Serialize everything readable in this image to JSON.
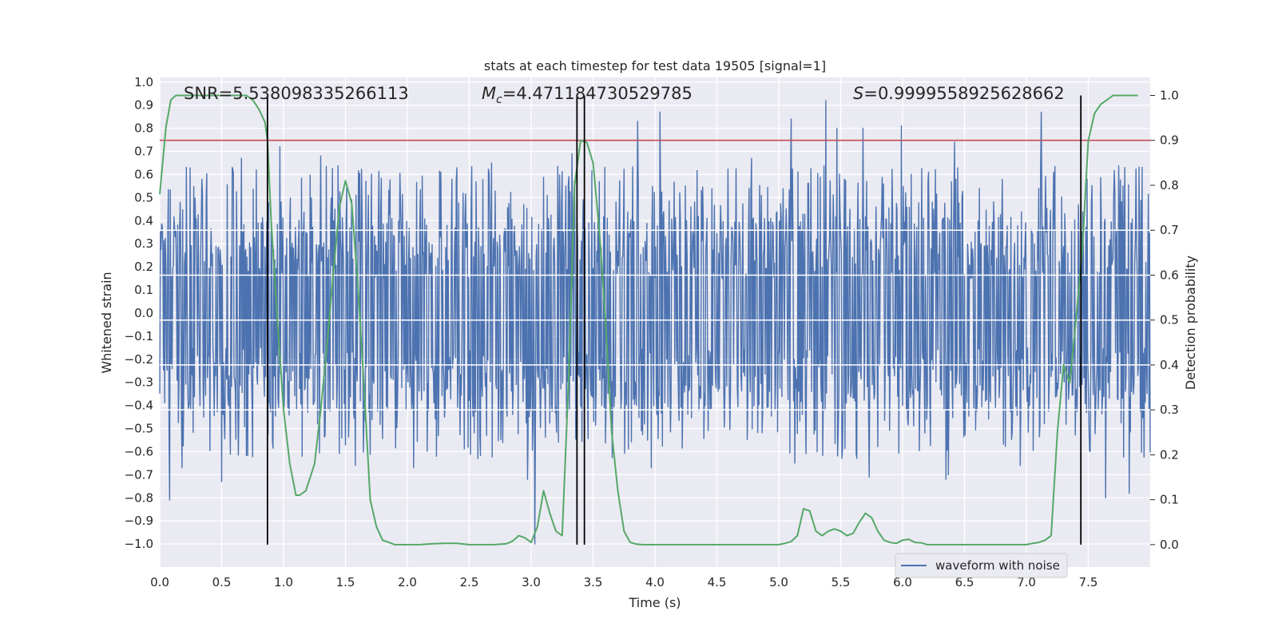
{
  "chart_data": {
    "type": "line",
    "title": "stats at each timestep for test data 19505 [signal=1]",
    "xlabel": "Time (s)",
    "ylabel_left": "Whitened strain",
    "ylabel_right": "Detection probability",
    "xlim": [
      0.0,
      8.0
    ],
    "ylim_left": [
      -1.1,
      1.02
    ],
    "ylim_right": [
      -0.05,
      1.04
    ],
    "x_ticks": [
      0.0,
      0.5,
      1.0,
      1.5,
      2.0,
      2.5,
      3.0,
      3.5,
      4.0,
      4.5,
      5.0,
      5.5,
      6.0,
      6.5,
      7.0,
      7.5
    ],
    "x_tick_labels": [
      "0.0",
      "0.5",
      "1.0",
      "1.5",
      "2.0",
      "2.5",
      "3.0",
      "3.5",
      "4.0",
      "4.5",
      "5.0",
      "5.5",
      "6.0",
      "6.5",
      "7.0",
      "7.5"
    ],
    "y_left_ticks": [
      1.0,
      0.9,
      0.8,
      0.7,
      0.6,
      0.5,
      0.4,
      0.3,
      0.2,
      0.1,
      0.0,
      -0.1,
      -0.2,
      -0.3,
      -0.4,
      -0.5,
      -0.6,
      -0.7,
      -0.8,
      -0.9,
      -1.0
    ],
    "y_left_tick_labels": [
      "1.0",
      "0.9",
      "0.8",
      "0.7",
      "0.6",
      "0.5",
      "0.4",
      "0.3",
      "0.2",
      "0.1",
      "0.0",
      "−0.1",
      "−0.2",
      "−0.3",
      "−0.4",
      "−0.5",
      "−0.6",
      "−0.7",
      "−0.8",
      "−0.9",
      "−1.0"
    ],
    "y_right_ticks": [
      1.0,
      0.9,
      0.8,
      0.7,
      0.6,
      0.5,
      0.4,
      0.3,
      0.2,
      0.1,
      0.0
    ],
    "y_right_tick_labels": [
      "1.0",
      "0.9",
      "0.8",
      "0.7",
      "0.6",
      "0.5",
      "0.4",
      "0.3",
      "0.2",
      "0.1",
      "0.0"
    ],
    "annotations": {
      "snr": "SNR=5.538098335266113",
      "mc_symbol": "M",
      "mc_sub": "c",
      "mc_value": "=4.471184730529785",
      "s_symbol": "S",
      "s_value": "=0.9999558925628662"
    },
    "legend": {
      "label": "waveform with noise",
      "location": "lower-right"
    },
    "threshold": {
      "value": 0.9,
      "axis": "right",
      "color": "#c44e52"
    },
    "vertical_lines": [
      0.87,
      3.37,
      3.43,
      7.44
    ],
    "waveform": {
      "name": "waveform with noise",
      "color": "#4c72b0",
      "duration_s": 8.0,
      "samples": 1600,
      "envelope_low": -0.43,
      "envelope_high": 0.42,
      "spikes": [
        {
          "t": 0.08,
          "v": -0.81
        },
        {
          "t": 0.18,
          "v": -0.67
        },
        {
          "t": 0.5,
          "v": -0.73
        },
        {
          "t": 0.66,
          "v": 0.67
        },
        {
          "t": 0.78,
          "v": 0.62
        },
        {
          "t": 0.97,
          "v": 0.72
        },
        {
          "t": 1.3,
          "v": 0.68
        },
        {
          "t": 1.58,
          "v": -0.66
        },
        {
          "t": 2.05,
          "v": -0.67
        },
        {
          "t": 2.57,
          "v": -0.63
        },
        {
          "t": 2.68,
          "v": 0.65
        },
        {
          "t": 2.97,
          "v": -0.72
        },
        {
          "t": 3.03,
          "v": -1.0
        },
        {
          "t": 3.33,
          "v": 0.69
        },
        {
          "t": 3.86,
          "v": 0.83
        },
        {
          "t": 3.97,
          "v": -0.67
        },
        {
          "t": 4.04,
          "v": 0.87
        },
        {
          "t": 4.78,
          "v": 0.67
        },
        {
          "t": 5.13,
          "v": -0.65
        },
        {
          "t": 5.38,
          "v": 0.92
        },
        {
          "t": 5.1,
          "v": 0.84
        },
        {
          "t": 5.47,
          "v": 0.8
        },
        {
          "t": 5.68,
          "v": 0.8
        },
        {
          "t": 5.73,
          "v": -0.71
        },
        {
          "t": 5.99,
          "v": 0.81
        },
        {
          "t": 6.35,
          "v": -0.72
        },
        {
          "t": 6.42,
          "v": 0.74
        },
        {
          "t": 6.95,
          "v": -0.66
        },
        {
          "t": 7.12,
          "v": 0.87
        },
        {
          "t": 7.64,
          "v": -0.8
        },
        {
          "t": 7.83,
          "v": -0.78
        },
        {
          "t": 1.15,
          "v": -0.62
        },
        {
          "t": 6.37,
          "v": -0.7
        }
      ]
    },
    "series": [
      {
        "name": "detection probability",
        "axis": "right",
        "color": "#55a868",
        "x": [
          0.0,
          0.05,
          0.09,
          0.13,
          0.2,
          0.3,
          0.4,
          0.5,
          0.6,
          0.7,
          0.75,
          0.8,
          0.85,
          0.87,
          0.9,
          0.95,
          1.0,
          1.05,
          1.1,
          1.13,
          1.18,
          1.25,
          1.3,
          1.35,
          1.4,
          1.45,
          1.5,
          1.55,
          1.6,
          1.65,
          1.7,
          1.75,
          1.8,
          1.85,
          1.9,
          2.0,
          2.1,
          2.2,
          2.3,
          2.4,
          2.5,
          2.6,
          2.7,
          2.8,
          2.85,
          2.9,
          2.95,
          3.0,
          3.05,
          3.1,
          3.15,
          3.2,
          3.25,
          3.3,
          3.35,
          3.4,
          3.45,
          3.5,
          3.55,
          3.6,
          3.65,
          3.7,
          3.75,
          3.8,
          3.85,
          3.9,
          4.0,
          4.1,
          4.2,
          4.3,
          4.4,
          4.5,
          4.6,
          4.7,
          4.8,
          4.9,
          5.0,
          5.05,
          5.1,
          5.15,
          5.2,
          5.25,
          5.3,
          5.35,
          5.4,
          5.45,
          5.5,
          5.55,
          5.6,
          5.65,
          5.7,
          5.75,
          5.8,
          5.85,
          5.9,
          5.95,
          6.0,
          6.05,
          6.1,
          6.15,
          6.2,
          6.25,
          6.3,
          6.4,
          6.5,
          6.6,
          6.7,
          6.8,
          6.9,
          7.0,
          7.05,
          7.1,
          7.15,
          7.2,
          7.25,
          7.3,
          7.35,
          7.4,
          7.45,
          7.5,
          7.55,
          7.6,
          7.65,
          7.7,
          7.8,
          7.9
        ],
        "y": [
          0.78,
          0.93,
          0.99,
          1.0,
          1.0,
          1.0,
          1.0,
          1.0,
          1.0,
          1.0,
          0.99,
          0.97,
          0.94,
          0.9,
          0.72,
          0.5,
          0.3,
          0.18,
          0.11,
          0.11,
          0.12,
          0.18,
          0.3,
          0.44,
          0.6,
          0.75,
          0.81,
          0.76,
          0.58,
          0.35,
          0.1,
          0.04,
          0.01,
          0.005,
          0.0,
          0.0,
          0.0,
          0.002,
          0.003,
          0.003,
          0.0,
          0.0,
          0.0,
          0.002,
          0.008,
          0.02,
          0.015,
          0.005,
          0.04,
          0.12,
          0.07,
          0.03,
          0.02,
          0.35,
          0.8,
          0.9,
          0.895,
          0.85,
          0.7,
          0.5,
          0.25,
          0.12,
          0.03,
          0.005,
          0.001,
          0.0,
          0.0,
          0.0,
          0.0,
          0.0,
          0.0,
          0.0,
          0.0,
          0.0,
          0.0,
          0.0,
          0.0,
          0.003,
          0.007,
          0.02,
          0.08,
          0.075,
          0.03,
          0.02,
          0.03,
          0.035,
          0.03,
          0.02,
          0.025,
          0.05,
          0.07,
          0.06,
          0.03,
          0.01,
          0.005,
          0.003,
          0.01,
          0.012,
          0.005,
          0.004,
          0.0,
          0.0,
          0.0,
          0.0,
          0.0,
          0.0,
          0.0,
          0.0,
          0.0,
          0.0,
          0.003,
          0.005,
          0.01,
          0.02,
          0.25,
          0.4,
          0.36,
          0.5,
          0.65,
          0.9,
          0.96,
          0.98,
          0.99,
          1.0,
          1.0,
          1.0
        ]
      }
    ]
  }
}
